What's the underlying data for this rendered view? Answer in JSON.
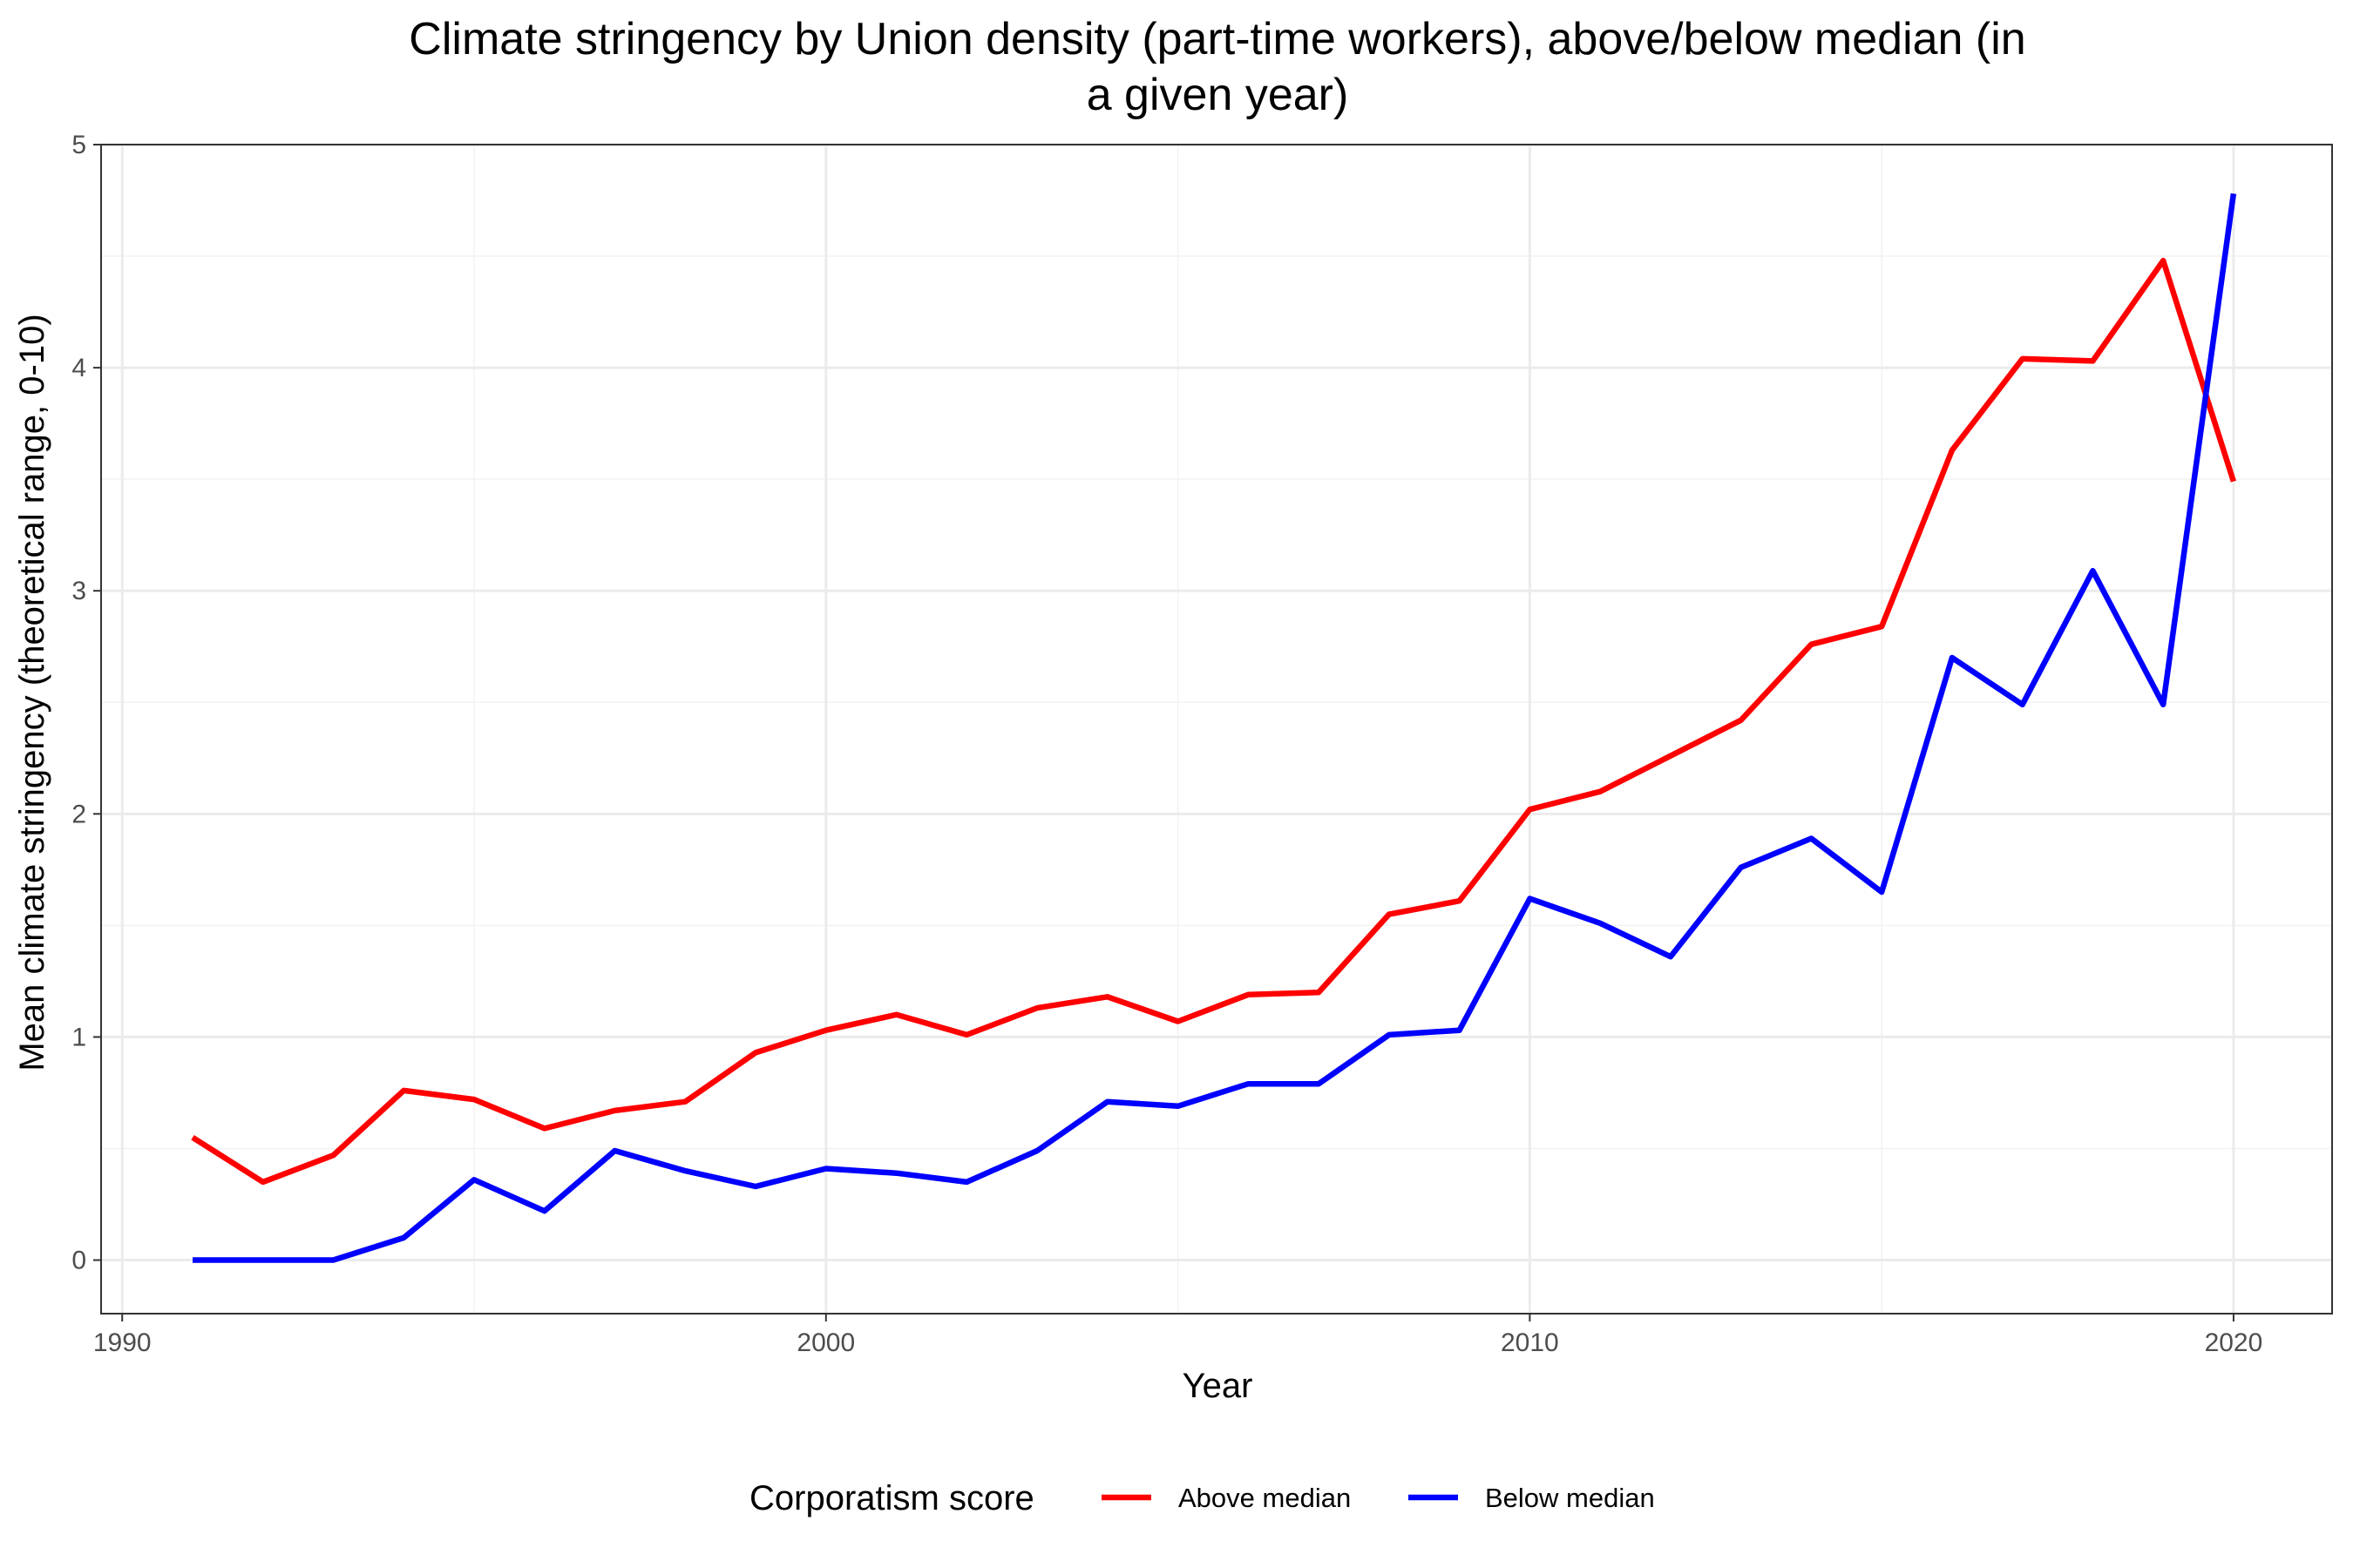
{
  "chart_data": {
    "type": "line",
    "title_lines": [
      "Climate stringency by Union density (part-time workers), above/below median (in",
      "a given year)"
    ],
    "xlabel": "Year",
    "ylabel": "Mean climate stringency (theoretical range, 0-10)",
    "xlim": [
      1989.7,
      2021.4
    ],
    "ylim": [
      -0.24,
      5.0
    ],
    "x_ticks": [
      1990,
      2000,
      2010,
      2020
    ],
    "x_tick_labels": [
      "1990",
      "2000",
      "2010",
      "2020"
    ],
    "y_ticks": [
      0,
      1,
      2,
      3,
      4,
      5
    ],
    "y_tick_labels": [
      "0",
      "1",
      "2",
      "3",
      "4",
      "5"
    ],
    "grid": true,
    "legend": {
      "title": "Corporatism score",
      "position": "bottom"
    },
    "x": [
      1991,
      1992,
      1993,
      1994,
      1995,
      1996,
      1997,
      1998,
      1999,
      2000,
      2001,
      2002,
      2003,
      2004,
      2005,
      2006,
      2007,
      2008,
      2009,
      2010,
      2011,
      2012,
      2013,
      2014,
      2015,
      2016,
      2017,
      2018,
      2019,
      2020
    ],
    "series": [
      {
        "name": "Above median",
        "color": "#ff0000",
        "values": [
          0.55,
          0.35,
          0.47,
          0.76,
          0.72,
          0.59,
          0.67,
          0.71,
          0.93,
          1.03,
          1.1,
          1.01,
          1.13,
          1.18,
          1.07,
          1.19,
          1.2,
          1.55,
          1.61,
          2.02,
          2.1,
          2.26,
          2.42,
          2.76,
          2.84,
          3.63,
          4.04,
          4.03,
          4.48,
          3.49
        ]
      },
      {
        "name": "Below median",
        "color": "#0000ff",
        "values": [
          0.0,
          0.0,
          0.0,
          0.1,
          0.36,
          0.22,
          0.49,
          0.4,
          0.33,
          0.41,
          0.39,
          0.35,
          0.49,
          0.71,
          0.69,
          0.79,
          0.79,
          1.01,
          1.03,
          1.62,
          1.51,
          1.36,
          1.76,
          1.89,
          1.65,
          2.7,
          2.49,
          3.09,
          2.49,
          4.78
        ]
      }
    ]
  }
}
